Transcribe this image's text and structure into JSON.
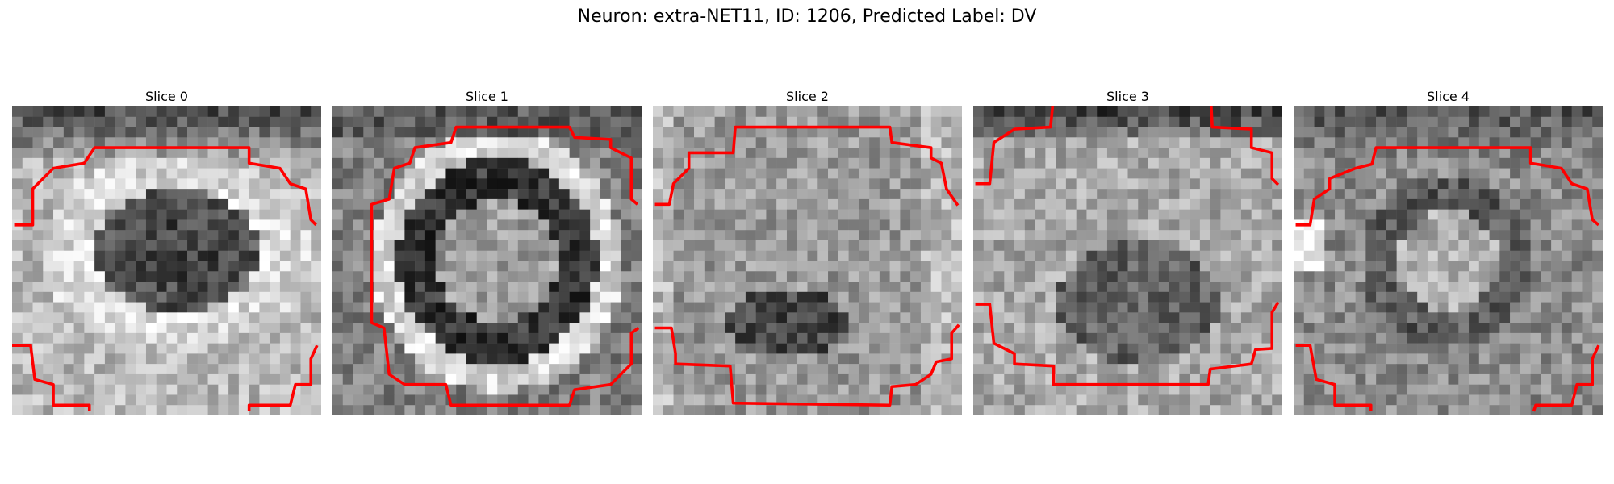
{
  "figure": {
    "title": "Neuron: extra-NET11, ID: 1206, Predicted Label: DV"
  },
  "panels": [
    {
      "title": "Slice 0"
    },
    {
      "title": "Slice 1"
    },
    {
      "title": "Slice 2"
    },
    {
      "title": "Slice 3"
    },
    {
      "title": "Slice 4"
    }
  ],
  "colors": {
    "contour": "#ff0000",
    "background": "#ffffff"
  },
  "image": {
    "colormap": "grayscale",
    "grid_cells": 30
  }
}
